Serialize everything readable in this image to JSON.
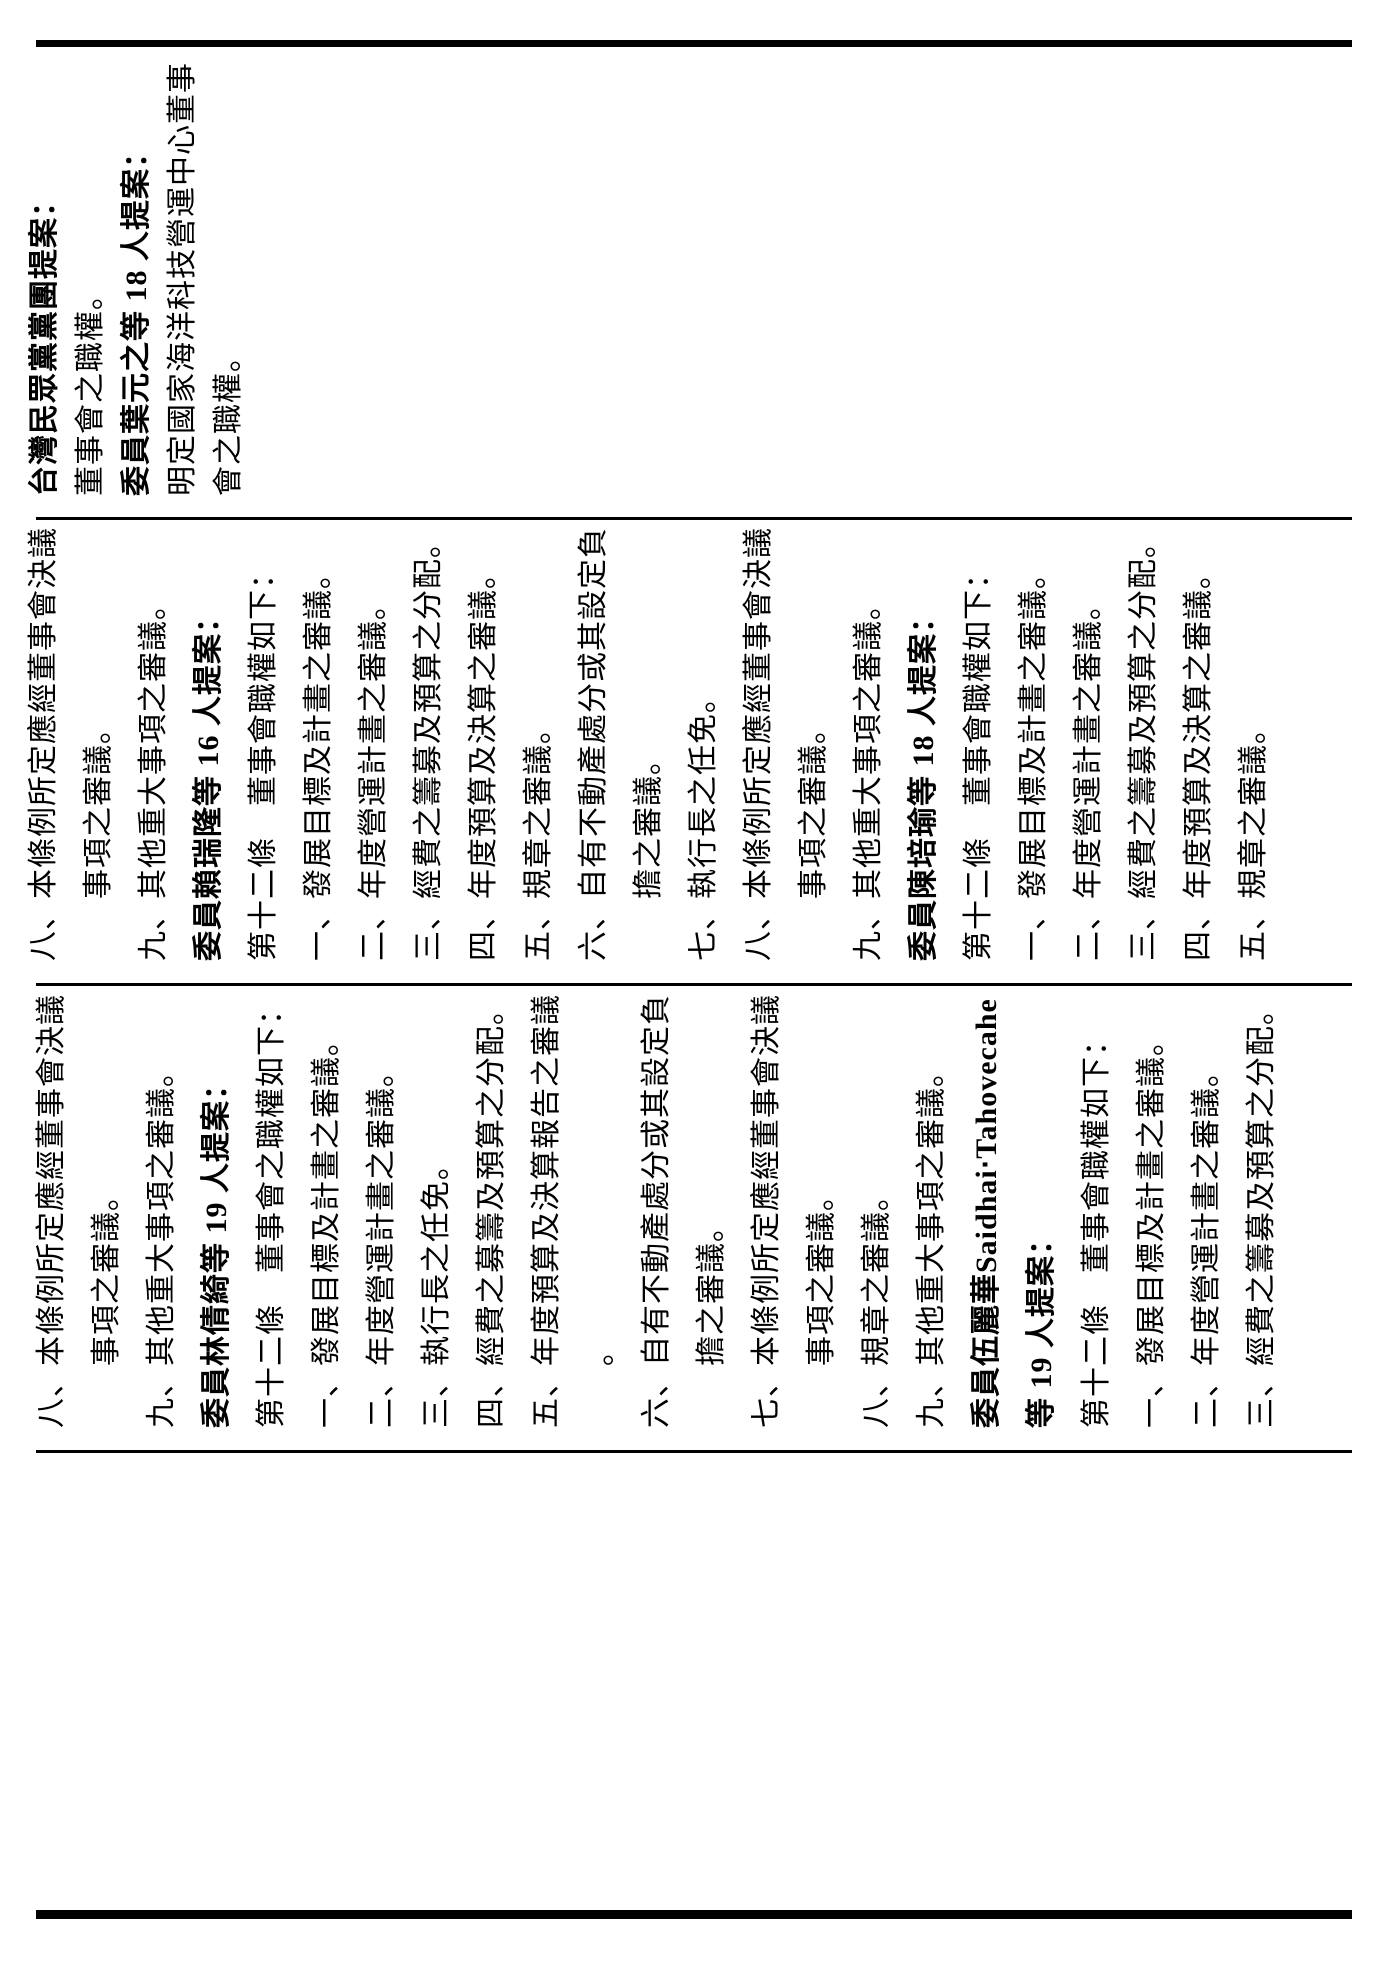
{
  "colors": {
    "ink": "#000000",
    "paper": "#ffffff"
  },
  "table": {
    "column_a": {
      "lines": [
        {
          "text": "台灣民眾黨黨團提案：",
          "bold": true,
          "indent": false
        },
        {
          "text": "董事會之職權。",
          "bold": false,
          "indent": false
        },
        {
          "text": "委員葉元之等 18 人提案：",
          "bold": true,
          "indent": false
        },
        {
          "text": "明定國家海洋科技營運中心董事",
          "bold": false,
          "indent": false
        },
        {
          "text": "會之職權。",
          "bold": false,
          "indent": false
        }
      ]
    },
    "column_b": {
      "lines": [
        {
          "text": "八、本條例所定應經董事會決議",
          "bold": false,
          "indent": false
        },
        {
          "text": "事項之審議。",
          "bold": false,
          "indent": true
        },
        {
          "text": "九、其他重大事項之審議。",
          "bold": false,
          "indent": false
        },
        {
          "text": "委員賴瑞隆等 16 人提案：",
          "bold": true,
          "indent": false
        },
        {
          "text": "第十二條　董事會職權如下：",
          "bold": false,
          "indent": false
        },
        {
          "text": "一、發展目標及計畫之審議。",
          "bold": false,
          "indent": false
        },
        {
          "text": "二、年度營運計畫之審議。",
          "bold": false,
          "indent": false
        },
        {
          "text": "三、經費之籌募及預算之分配。",
          "bold": false,
          "indent": false
        },
        {
          "text": "四、年度預算及決算之審議。",
          "bold": false,
          "indent": false
        },
        {
          "text": "五、規章之審議。",
          "bold": false,
          "indent": false
        },
        {
          "text": "六、自有不動產處分或其設定負",
          "bold": false,
          "indent": false
        },
        {
          "text": "擔之審議。",
          "bold": false,
          "indent": true
        },
        {
          "text": "七、執行長之任免。",
          "bold": false,
          "indent": false
        },
        {
          "text": "八、本條例所定應經董事會決議",
          "bold": false,
          "indent": false
        },
        {
          "text": "事項之審議。",
          "bold": false,
          "indent": true
        },
        {
          "text": "九、其他重大事項之審議。",
          "bold": false,
          "indent": false
        },
        {
          "text": "委員陳培瑜等 18 人提案：",
          "bold": true,
          "indent": false
        },
        {
          "text": "第十二條　董事會職權如下：",
          "bold": false,
          "indent": false
        },
        {
          "text": "一、發展目標及計畫之審議。",
          "bold": false,
          "indent": false
        },
        {
          "text": "二、年度營運計畫之審議。",
          "bold": false,
          "indent": false
        },
        {
          "text": "三、經費之籌募及預算之分配。",
          "bold": false,
          "indent": false
        },
        {
          "text": "四、年度預算及決算之審議。",
          "bold": false,
          "indent": false
        },
        {
          "text": "五、規章之審議。",
          "bold": false,
          "indent": false
        }
      ]
    },
    "column_c": {
      "lines": [
        {
          "text": "八、本條例所定應經董事會決議",
          "bold": false,
          "indent": false
        },
        {
          "text": "事項之審議。",
          "bold": false,
          "indent": true
        },
        {
          "text": "九、其他重大事項之審議。",
          "bold": false,
          "indent": false
        },
        {
          "text": "委員林倩綺等 19 人提案：",
          "bold": true,
          "indent": false
        },
        {
          "text": "第十二條　董事會之職權如下：",
          "bold": false,
          "indent": false
        },
        {
          "text": "一、發展目標及計畫之審議。",
          "bold": false,
          "indent": false
        },
        {
          "text": "二、年度營運計畫之審議。",
          "bold": false,
          "indent": false
        },
        {
          "text": "三、執行長之任免。",
          "bold": false,
          "indent": false
        },
        {
          "text": "四、經費之募籌及預算之分配。",
          "bold": false,
          "indent": false
        },
        {
          "text": "五、年度預算及決算報告之審議",
          "bold": false,
          "indent": false
        },
        {
          "text": "。",
          "bold": false,
          "indent": true
        },
        {
          "text": "六、自有不動產處分或其設定負",
          "bold": false,
          "indent": false
        },
        {
          "text": "擔之審議。",
          "bold": false,
          "indent": true
        },
        {
          "text": "七、本條例所定應經董事會決議",
          "bold": false,
          "indent": false
        },
        {
          "text": "事項之審議。",
          "bold": false,
          "indent": true
        },
        {
          "text": "八、規章之審議。",
          "bold": false,
          "indent": false
        },
        {
          "text": "九、其他重大事項之審議。",
          "bold": false,
          "indent": false
        },
        {
          "text": "委員伍麗華Saidhai‧Tahovecahe",
          "bold": true,
          "indent": false
        },
        {
          "text": "等 19 人提案：",
          "bold": true,
          "indent": false
        },
        {
          "text": "第十二條　董事會職權如下：",
          "bold": false,
          "indent": false
        },
        {
          "text": "一、發展目標及計畫之審議。",
          "bold": false,
          "indent": false
        },
        {
          "text": "二、年度營運計畫之審議。",
          "bold": false,
          "indent": false
        },
        {
          "text": "三、經費之籌募及預算之分配。",
          "bold": false,
          "indent": false
        }
      ]
    },
    "column_d": {
      "lines": []
    }
  }
}
